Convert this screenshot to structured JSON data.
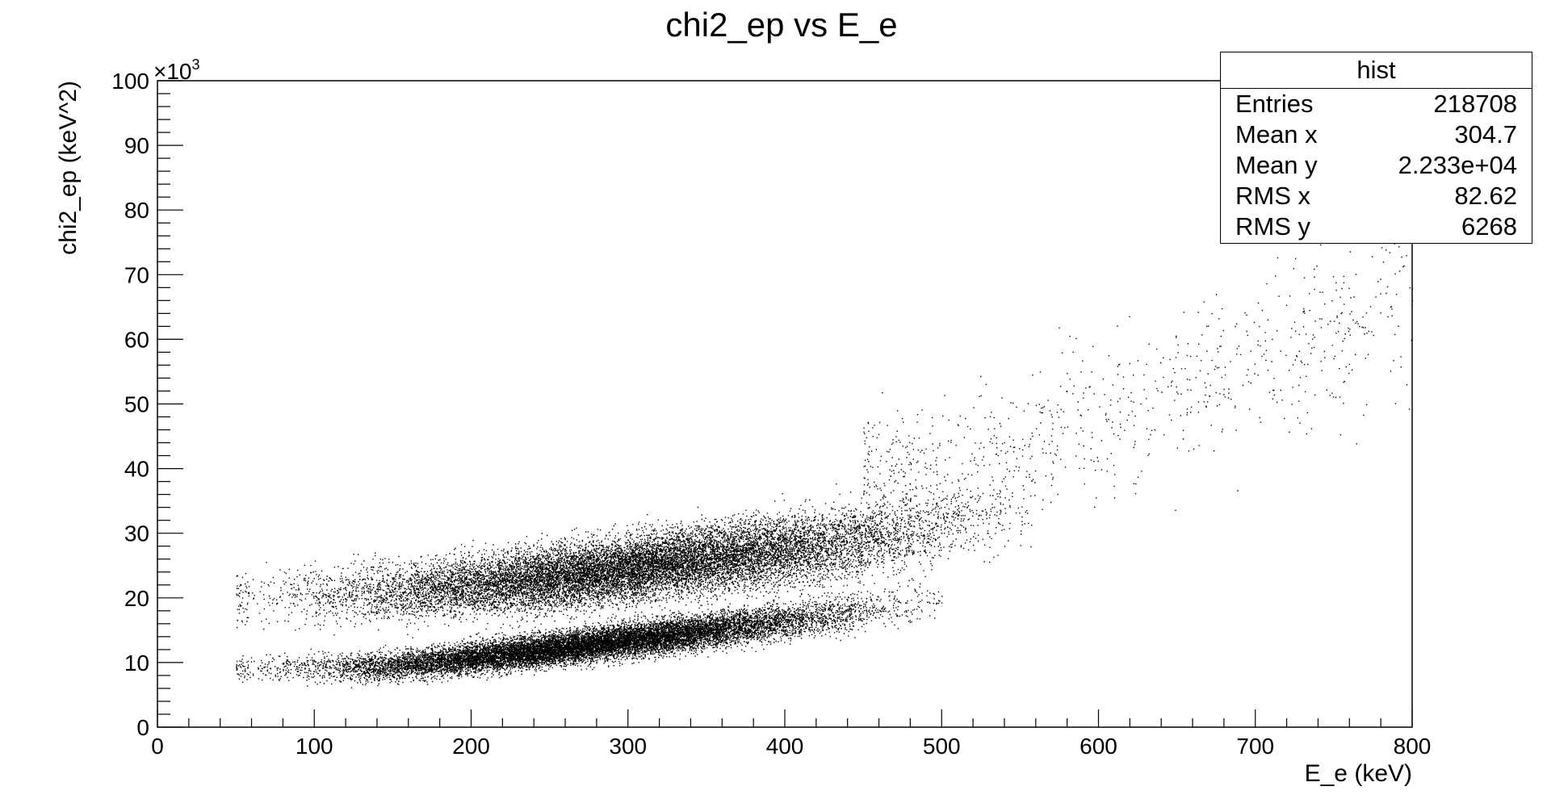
{
  "chart_data": {
    "type": "scatter",
    "title": "chi2_ep vs E_e",
    "xlabel": "E_e (keV)",
    "ylabel": "chi2_ep (keV^2)",
    "y_exponent_label": "×10",
    "y_exponent_power": "3",
    "xlim": [
      0,
      800
    ],
    "ylim": [
      0,
      100
    ],
    "x_ticks": [
      0,
      100,
      200,
      300,
      400,
      500,
      600,
      700,
      800
    ],
    "y_ticks": [
      0,
      10,
      20,
      30,
      40,
      50,
      60,
      70,
      80,
      90,
      100
    ],
    "grid": false,
    "legend": "none",
    "marker_color": "#000000",
    "stats_box": {
      "name": "hist",
      "rows": [
        {
          "label": "Entries",
          "value": "218708"
        },
        {
          "label": "Mean x",
          "value": "304.7"
        },
        {
          "label": "Mean y",
          "value": "2.233e+04"
        },
        {
          "label": "RMS x",
          "value": "82.62"
        },
        {
          "label": "RMS y",
          "value": "6268"
        }
      ]
    },
    "populations": [
      {
        "x_range": [
          50,
          560
        ],
        "y_at_x": [
          [
            50,
            20
          ],
          [
            150,
            21
          ],
          [
            250,
            23
          ],
          [
            350,
            26
          ],
          [
            450,
            29
          ],
          [
            560,
            34
          ]
        ],
        "y_spread": 3.2,
        "density": "high"
      },
      {
        "x_range": [
          50,
          500
        ],
        "y_at_x": [
          [
            50,
            9
          ],
          [
            150,
            9.5
          ],
          [
            250,
            12
          ],
          [
            350,
            15
          ],
          [
            450,
            18
          ],
          [
            500,
            20
          ]
        ],
        "y_spread": 1.6,
        "density": "high"
      },
      {
        "x_range": [
          450,
          800
        ],
        "y_at_x": [
          [
            450,
            38
          ],
          [
            550,
            42
          ],
          [
            650,
            52
          ],
          [
            750,
            62
          ],
          [
            800,
            68
          ]
        ],
        "y_spread": 8,
        "density": "sparse"
      }
    ]
  }
}
